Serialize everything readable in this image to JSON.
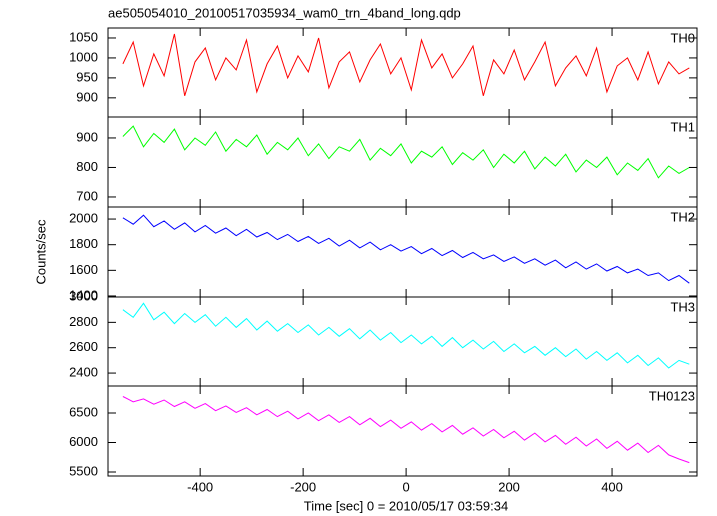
{
  "chart_data": {
    "type": "line",
    "title": "ae505054010_20100517035934_wam0_trn_4band_long.qdp",
    "xlabel": "Time [sec] 0 = 2010/05/17 03:59:34",
    "ylabel": "Counts/sec",
    "xlim": [
      -579,
      565
    ],
    "xticks": [
      -400,
      -200,
      0,
      200,
      400
    ],
    "x": [
      -550,
      -530,
      -510,
      -490,
      -470,
      -450,
      -430,
      -410,
      -390,
      -370,
      -350,
      -330,
      -310,
      -290,
      -270,
      -250,
      -230,
      -210,
      -190,
      -170,
      -150,
      -130,
      -110,
      -90,
      -70,
      -50,
      -30,
      -10,
      10,
      30,
      50,
      70,
      90,
      110,
      130,
      150,
      170,
      190,
      210,
      230,
      250,
      270,
      290,
      310,
      330,
      350,
      370,
      390,
      410,
      430,
      450,
      470,
      490,
      510,
      530,
      550
    ],
    "panels": [
      {
        "label": "TH0",
        "color": "#ff0000",
        "ylim": [
          852,
          1075
        ],
        "yticks": [
          900,
          950,
          1000,
          1050
        ],
        "values": [
          985,
          1040,
          930,
          1010,
          955,
          1060,
          905,
          990,
          1025,
          945,
          1000,
          970,
          1045,
          915,
          985,
          1030,
          950,
          1005,
          965,
          1050,
          925,
          990,
          1015,
          940,
          995,
          1035,
          960,
          1000,
          920,
          1045,
          975,
          1010,
          950,
          985,
          1030,
          905,
          995,
          960,
          1020,
          945,
          990,
          1040,
          930,
          975,
          1005,
          955,
          1025,
          915,
          980,
          1000,
          945,
          1015,
          935,
          990,
          960,
          975
        ]
      },
      {
        "label": "TH1",
        "color": "#00ff00",
        "ylim": [
          666,
          971
        ],
        "yticks": [
          700,
          800,
          900
        ],
        "values": [
          905,
          940,
          870,
          915,
          885,
          930,
          860,
          900,
          875,
          920,
          855,
          895,
          870,
          910,
          845,
          885,
          860,
          900,
          840,
          880,
          830,
          870,
          855,
          895,
          825,
          865,
          840,
          880,
          815,
          855,
          835,
          870,
          810,
          850,
          825,
          860,
          800,
          845,
          815,
          855,
          795,
          835,
          805,
          845,
          785,
          825,
          800,
          835,
          775,
          815,
          790,
          830,
          765,
          805,
          780,
          800
        ]
      },
      {
        "label": "TH2",
        "color": "#0000ff",
        "ylim": [
          1392,
          2094
        ],
        "yticks": [
          1400,
          1600,
          1800,
          2000
        ],
        "values": [
          2010,
          1960,
          2030,
          1940,
          1985,
          1920,
          1970,
          1900,
          1950,
          1890,
          1930,
          1870,
          1920,
          1860,
          1895,
          1840,
          1880,
          1825,
          1865,
          1810,
          1850,
          1790,
          1835,
          1775,
          1820,
          1760,
          1800,
          1750,
          1785,
          1730,
          1770,
          1715,
          1755,
          1700,
          1740,
          1690,
          1720,
          1670,
          1705,
          1655,
          1690,
          1640,
          1680,
          1620,
          1665,
          1610,
          1650,
          1595,
          1630,
          1580,
          1610,
          1560,
          1580,
          1520,
          1560,
          1500
        ]
      },
      {
        "label": "TH3",
        "color": "#00ffff",
        "ylim": [
          2298,
          3000
        ],
        "yticks": [
          2400,
          2600,
          2800,
          3000
        ],
        "values": [
          2900,
          2840,
          2950,
          2820,
          2880,
          2790,
          2870,
          2800,
          2860,
          2770,
          2840,
          2760,
          2830,
          2740,
          2810,
          2730,
          2790,
          2720,
          2780,
          2700,
          2760,
          2690,
          2750,
          2670,
          2740,
          2660,
          2720,
          2640,
          2700,
          2630,
          2690,
          2610,
          2680,
          2600,
          2660,
          2590,
          2650,
          2570,
          2630,
          2560,
          2610,
          2540,
          2600,
          2530,
          2590,
          2510,
          2570,
          2500,
          2560,
          2480,
          2540,
          2460,
          2520,
          2440,
          2500,
          2470
        ]
      },
      {
        "label": "TH0123",
        "color": "#ff00ff",
        "ylim": [
          5432,
          6958
        ],
        "yticks": [
          5500,
          6000,
          6500
        ],
        "values": [
          6780,
          6690,
          6740,
          6650,
          6720,
          6610,
          6690,
          6580,
          6660,
          6540,
          6620,
          6510,
          6590,
          6470,
          6560,
          6440,
          6530,
          6400,
          6500,
          6370,
          6470,
          6340,
          6440,
          6300,
          6410,
          6270,
          6380,
          6240,
          6350,
          6210,
          6320,
          6180,
          6290,
          6140,
          6250,
          6110,
          6220,
          6080,
          6190,
          6040,
          6160,
          6010,
          6120,
          5970,
          6090,
          5940,
          6060,
          5900,
          6020,
          5870,
          5990,
          5830,
          5950,
          5790,
          5720,
          5660
        ]
      }
    ]
  }
}
